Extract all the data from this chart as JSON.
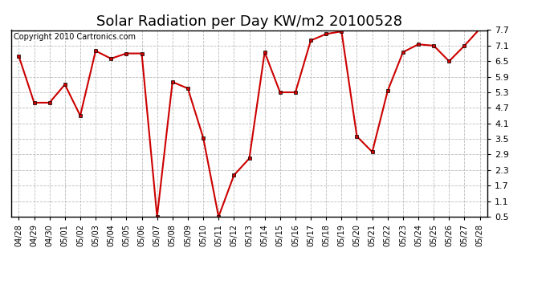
{
  "title": "Solar Radiation per Day KW/m2 20100528",
  "copyright": "Copyright 2010 Cartronics.com",
  "dates": [
    "04/28",
    "04/29",
    "04/30",
    "05/01",
    "05/02",
    "05/03",
    "05/04",
    "05/05",
    "05/06",
    "05/07",
    "05/08",
    "05/09",
    "05/10",
    "05/11",
    "05/12",
    "05/13",
    "05/14",
    "05/15",
    "05/16",
    "05/17",
    "05/18",
    "05/19",
    "05/20",
    "05/21",
    "05/22",
    "05/23",
    "05/24",
    "05/25",
    "05/26",
    "05/27",
    "05/28"
  ],
  "values": [
    6.7,
    4.9,
    4.9,
    5.6,
    4.4,
    6.9,
    6.6,
    6.8,
    6.8,
    0.5,
    5.7,
    5.45,
    3.55,
    0.5,
    2.1,
    2.75,
    6.85,
    5.3,
    5.3,
    7.3,
    7.55,
    7.65,
    3.6,
    3.0,
    5.35,
    6.85,
    7.15,
    7.1,
    6.5,
    7.1,
    7.75
  ],
  "line_color": "#cc0000",
  "marker_size": 3,
  "background_color": "#ffffff",
  "grid_color": "#bbbbbb",
  "ylim": [
    0.5,
    7.7
  ],
  "yticks": [
    0.5,
    1.1,
    1.7,
    2.3,
    2.9,
    3.5,
    4.1,
    4.7,
    5.3,
    5.9,
    6.5,
    7.1,
    7.7
  ],
  "title_fontsize": 13,
  "copyright_fontsize": 7,
  "tick_fontsize": 7,
  "ytick_fontsize": 8
}
